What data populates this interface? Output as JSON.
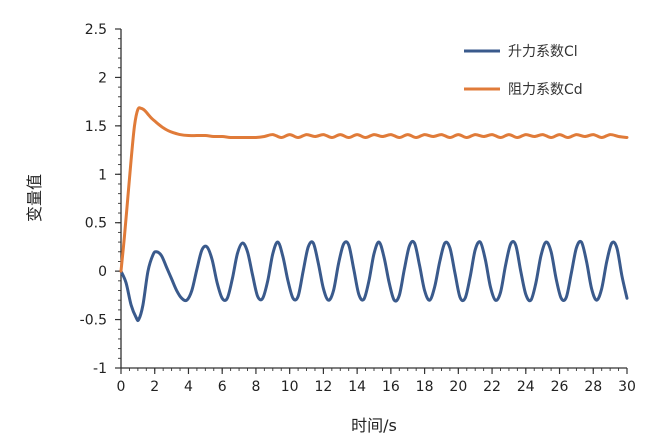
{
  "chart_data": {
    "type": "line",
    "title": "",
    "xlabel": "时间/s",
    "ylabel": "变量值",
    "xlim": [
      0,
      30
    ],
    "ylim": [
      -1,
      2.5
    ],
    "x_ticks": [
      "0",
      "2",
      "4",
      "6",
      "8",
      "10",
      "12",
      "14",
      "16",
      "18",
      "20",
      "22",
      "24",
      "26",
      "28",
      "30"
    ],
    "y_ticks": [
      "2.5",
      "2",
      "1.5",
      "1",
      "0.5",
      "0",
      "-0.5",
      "-1"
    ],
    "grid": false,
    "legend_position": "top-right",
    "series": [
      {
        "name": "升力系数Cl",
        "color": "#3a5a8c",
        "x": [
          0,
          0.3,
          0.6,
          0.9,
          1.05,
          1.3,
          1.6,
          1.9,
          2.1,
          2.4,
          2.7,
          3.0,
          3.3,
          3.6,
          3.9,
          4.2,
          4.5,
          4.8,
          5.1,
          5.4,
          5.7,
          6.0,
          6.3,
          6.6,
          6.9,
          7.2,
          7.5,
          7.8,
          8.1,
          8.4,
          8.7,
          9.0,
          9.3,
          9.6,
          9.9,
          10.2,
          10.5,
          10.8,
          11.1,
          11.4,
          11.7,
          12.0,
          12.3,
          12.6,
          12.9,
          13.2,
          13.5,
          13.8,
          14.1,
          14.4,
          14.7,
          15.0,
          15.3,
          15.6,
          15.9,
          16.2,
          16.5,
          16.8,
          17.1,
          17.4,
          17.7,
          18.0,
          18.3,
          18.6,
          18.9,
          19.2,
          19.5,
          19.8,
          20.1,
          20.4,
          20.7,
          21.0,
          21.3,
          21.6,
          21.9,
          22.2,
          22.5,
          22.8,
          23.1,
          23.4,
          23.7,
          24.0,
          24.3,
          24.6,
          24.9,
          25.2,
          25.5,
          25.8,
          26.1,
          26.4,
          26.7,
          27.0,
          27.3,
          27.6,
          27.9,
          28.2,
          28.5,
          28.8,
          29.1,
          29.4,
          29.7,
          30.0
        ],
        "values": [
          0,
          -0.12,
          -0.35,
          -0.48,
          -0.5,
          -0.35,
          0.0,
          0.17,
          0.2,
          0.16,
          0.04,
          -0.08,
          -0.2,
          -0.28,
          -0.3,
          -0.2,
          0.02,
          0.22,
          0.25,
          0.12,
          -0.12,
          -0.28,
          -0.28,
          -0.08,
          0.18,
          0.29,
          0.2,
          -0.04,
          -0.26,
          -0.28,
          -0.1,
          0.18,
          0.3,
          0.15,
          -0.1,
          -0.28,
          -0.26,
          0.0,
          0.25,
          0.29,
          0.08,
          -0.18,
          -0.3,
          -0.2,
          0.08,
          0.28,
          0.27,
          0.02,
          -0.24,
          -0.29,
          -0.1,
          0.18,
          0.3,
          0.14,
          -0.12,
          -0.3,
          -0.25,
          0.02,
          0.26,
          0.29,
          0.06,
          -0.2,
          -0.3,
          -0.16,
          0.1,
          0.29,
          0.24,
          -0.02,
          -0.27,
          -0.28,
          -0.06,
          0.22,
          0.3,
          0.12,
          -0.16,
          -0.3,
          -0.22,
          0.06,
          0.28,
          0.27,
          0.0,
          -0.24,
          -0.3,
          -0.12,
          0.16,
          0.3,
          0.2,
          -0.08,
          -0.28,
          -0.27,
          -0.02,
          0.24,
          0.3,
          0.1,
          -0.18,
          -0.3,
          -0.18,
          0.1,
          0.29,
          0.24,
          -0.05,
          -0.28
        ]
      },
      {
        "name": "阻力系数Cd",
        "color": "#e07b39",
        "x": [
          0,
          0.2,
          0.4,
          0.6,
          0.8,
          1.0,
          1.2,
          1.4,
          1.6,
          1.8,
          2.0,
          2.2,
          2.5,
          2.8,
          3.1,
          3.5,
          4.0,
          4.5,
          5.0,
          5.5,
          6.0,
          6.5,
          7.0,
          7.5,
          8.0,
          8.5,
          9.0,
          9.5,
          10.0,
          10.5,
          11.0,
          11.5,
          12.0,
          12.5,
          13.0,
          13.5,
          14.0,
          14.5,
          15.0,
          15.5,
          16.0,
          16.5,
          17.0,
          17.5,
          18.0,
          18.5,
          19.0,
          19.5,
          20.0,
          20.5,
          21.0,
          21.5,
          22.0,
          22.5,
          23.0,
          23.5,
          24.0,
          24.5,
          25.0,
          25.5,
          26.0,
          26.5,
          27.0,
          27.5,
          28.0,
          28.5,
          29.0,
          29.5,
          30.0
        ],
        "values": [
          0,
          0.35,
          0.75,
          1.15,
          1.5,
          1.67,
          1.68,
          1.66,
          1.62,
          1.58,
          1.55,
          1.52,
          1.48,
          1.45,
          1.43,
          1.41,
          1.4,
          1.4,
          1.4,
          1.39,
          1.39,
          1.38,
          1.38,
          1.38,
          1.38,
          1.39,
          1.41,
          1.38,
          1.41,
          1.38,
          1.41,
          1.39,
          1.41,
          1.38,
          1.41,
          1.38,
          1.41,
          1.38,
          1.41,
          1.39,
          1.41,
          1.38,
          1.41,
          1.38,
          1.41,
          1.39,
          1.41,
          1.38,
          1.41,
          1.38,
          1.41,
          1.39,
          1.41,
          1.38,
          1.41,
          1.38,
          1.41,
          1.39,
          1.41,
          1.38,
          1.41,
          1.38,
          1.41,
          1.39,
          1.41,
          1.38,
          1.41,
          1.39,
          1.38
        ]
      }
    ]
  }
}
